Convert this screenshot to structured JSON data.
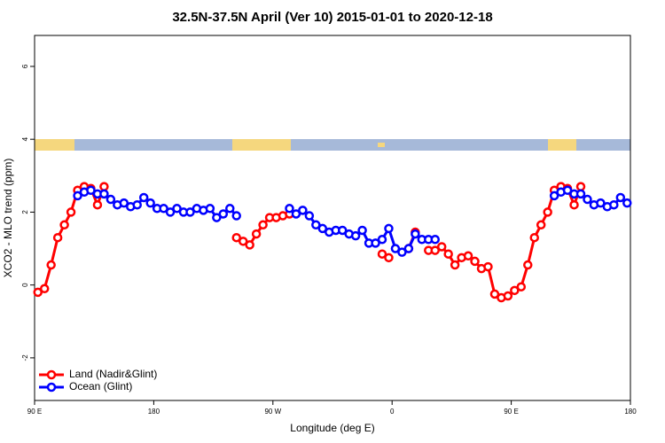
{
  "chart_data": {
    "type": "line",
    "title": "32.5N-37.5N April (Ver 10)   2015-01-01 to 2020-12-18",
    "x_label": "Longitude (deg E)",
    "y_label": "XCO2 - MLO trend (ppm)",
    "xlim": [
      90,
      540
    ],
    "ylim": [
      -3.17,
      6.85
    ],
    "xticks": [
      {
        "value": 90,
        "label": "90 E"
      },
      180,
      {
        "value": 270,
        "label": "90 W"
      },
      {
        "value": 360,
        "label": "0"
      },
      {
        "value": 450,
        "label": "90 E"
      },
      {
        "value": 540,
        "label": "180"
      }
    ],
    "yticks": [
      -2,
      0,
      2,
      4,
      6
    ],
    "legend": "bottom left",
    "series": [
      {
        "name": "Land (Nadir&Glint)",
        "color": "#ff0000",
        "x": [
          92.5,
          97.5,
          102.5,
          107.5,
          112.5,
          117.5,
          122.5,
          127.5,
          132.5,
          137.5,
          142.5,
          147.5,
          242.5,
          247.5,
          252.5,
          257.5,
          262.5,
          267.5,
          272.5,
          277.5,
          282.5,
          287.5,
          352.5,
          357.5,
          362.5,
          372.5,
          377.5,
          382.5,
          387.5,
          392.5,
          397.5,
          402.5,
          407.5,
          412.5,
          417.5,
          422.5,
          427.5,
          432.5,
          437.5,
          442.5,
          447.5,
          452.5,
          457.5,
          462.5,
          467.5,
          472.5,
          477.5,
          482.5,
          487.5,
          492.5,
          497.5,
          502.5
        ],
        "values": [
          -0.2,
          -0.1,
          0.55,
          1.3,
          1.65,
          2.0,
          2.6,
          2.7,
          2.65,
          2.2,
          2.7,
          null,
          1.3,
          1.2,
          1.1,
          1.4,
          1.65,
          1.85,
          1.85,
          1.9,
          1.95,
          null,
          0.85,
          0.75,
          null,
          1.0,
          1.45,
          null,
          0.95,
          0.95,
          1.05,
          0.85,
          0.55,
          0.75,
          0.8,
          0.65,
          0.45,
          0.5,
          -0.25,
          -0.35,
          -0.3,
          -0.15,
          -0.05,
          0.55,
          1.3,
          1.65,
          2.0,
          2.6,
          2.7,
          2.65,
          2.2,
          2.7
        ]
      },
      {
        "name": "Ocean (Glint)",
        "color": "#0000ff",
        "x": [
          122.5,
          127.5,
          132.5,
          137.5,
          142.5,
          147.5,
          152.5,
          157.5,
          162.5,
          167.5,
          172.5,
          177.5,
          182.5,
          187.5,
          192.5,
          197.5,
          202.5,
          207.5,
          212.5,
          217.5,
          222.5,
          227.5,
          232.5,
          237.5,
          242.5,
          247.5,
          282.5,
          287.5,
          292.5,
          297.5,
          302.5,
          307.5,
          312.5,
          317.5,
          322.5,
          327.5,
          332.5,
          337.5,
          342.5,
          347.5,
          352.5,
          357.5,
          362.5,
          367.5,
          372.5,
          377.5,
          382.5,
          387.5,
          392.5,
          397.5,
          482.5,
          487.5,
          492.5,
          497.5,
          502.5,
          507.5,
          512.5,
          517.5,
          522.5,
          527.5,
          532.5,
          537.5
        ],
        "values": [
          2.45,
          2.55,
          2.6,
          2.5,
          2.5,
          2.35,
          2.2,
          2.25,
          2.15,
          2.2,
          2.4,
          2.25,
          2.1,
          2.1,
          2.0,
          2.1,
          2.0,
          2.0,
          2.1,
          2.05,
          2.1,
          1.85,
          1.95,
          2.1,
          1.9,
          null,
          2.1,
          1.95,
          2.05,
          1.9,
          1.65,
          1.55,
          1.45,
          1.5,
          1.5,
          1.4,
          1.35,
          1.5,
          1.15,
          1.15,
          1.25,
          1.55,
          1.0,
          0.9,
          1.0,
          1.4,
          1.25,
          1.25,
          1.25,
          null,
          2.45,
          2.55,
          2.6,
          2.5,
          2.5,
          2.35,
          2.2,
          2.25,
          2.15,
          2.2,
          2.4,
          2.25
        ]
      }
    ]
  }
}
